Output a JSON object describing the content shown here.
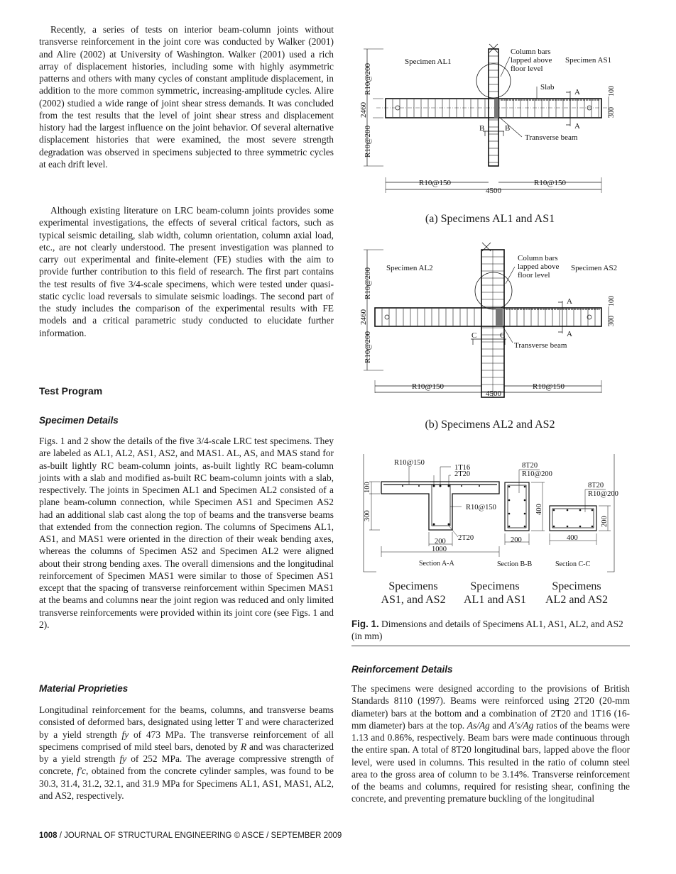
{
  "left": {
    "intro_p1": "Recently, a series of tests on interior beam-column joints without transverse reinforcement in the joint core was conducted by Walker (2001) and Alire (2002) at University of Washington. Walker (2001) used a rich array of displacement histories, including some with highly asymmetric patterns and others with many cycles of constant amplitude displacement, in addition to the more common symmetric, increasing-amplitude cycles. Alire (2002) studied a wide range of joint shear stress demands. It was concluded from the test results that the level of joint shear stress and displacement history had the largest influence on the joint behavior. Of several alternative displacement histories that were examined, the most severe strength degradation was observed in specimens subjected to three symmetric cycles at each drift level.",
    "intro_p2": "Although existing literature on LRC beam-column joints provides some experimental investigations, the effects of several critical factors, such as typical seismic detailing, slab width, column orientation, column axial load, etc., are not clearly understood. The present investigation was planned to carry out experimental and finite-element (FE) studies with the aim to provide further contribution to this field of research. The first part contains the test results of five 3/4-scale specimens, which were tested under quasi-static cyclic load reversals to simulate seismic loadings. The second part of the study includes the comparison of the experimental results with FE models and a critical parametric study conducted to elucidate further information.",
    "section_heading": "Test Program",
    "specimen_heading": "Specimen Details",
    "specimen_p": "Figs. 1 and 2 show the details of the five 3/4-scale LRC test specimens. They are labeled as AL1, AL2, AS1, AS2, and MAS1. AL, AS, and MAS stand for as-built lightly RC beam-column joints, as-built lightly RC beam-column joints with a slab and modified as-built RC beam-column joints with a slab, respectively. The joints in Specimen AL1 and Specimen AL2 consisted of a plane beam-column connection, while Specimen AS1 and Specimen AS2 had an additional slab cast along the top of beams and the transverse beams that extended from the connection region. The columns of Specimens AL1, AS1, and MAS1 were oriented in the direction of their weak bending axes, whereas the columns of Specimen AS2 and Specimen AL2 were aligned about their strong bending axes. The overall dimensions and the longitudinal reinforcement of Specimen MAS1 were similar to those of Specimen AS1 except that the spacing of transverse reinforcement within Specimen MAS1 at the beams and columns near the joint region was reduced and only limited transverse reinforcements were provided within its joint core (see Figs. 1 and 2).",
    "material_heading": "Material Proprieties",
    "material_p": {
      "s1": "Longitudinal reinforcement for the beams, columns, and transverse beams consisted of deformed bars, designated using letter T and were characterized by a yield strength ",
      "fy1": "fy",
      "s2": " of 473 MPa. The transverse reinforcement of all specimens comprised of mild steel bars, denoted by ",
      "R": "R",
      "s3": " and was characterized by a yield strength ",
      "fy2": "fy",
      "s4": " of 252 MPa. The average compressive strength of concrete, ",
      "fc": "f′c",
      "s5": ", obtained from the concrete cylinder samples, was found to be 30.3, 31.4, 31.2, 32.1, and 31.9 MPa for Specimens AL1, AS1, MAS1, AL2, and AS2, respectively."
    }
  },
  "figure": {
    "a": {
      "left_label": "Specimen AL1",
      "right_label": "Specimen AS1",
      "note": [
        "Column bars",
        "lapped above",
        "floor level"
      ],
      "slab": "Slab",
      "section_a": "A",
      "section_b": "B",
      "transverse": "Transverse beam",
      "v_top": "R10@200",
      "v_bot": "R10@200",
      "v_total": "2460",
      "h_left": "R10@150",
      "h_right": "R10@150",
      "h_total": "4500",
      "d100": "100",
      "d300": "300",
      "caption": "(a) Specimens AL1 and AS1"
    },
    "b": {
      "left_label": "Specimen AL2",
      "right_label": "Specimen AS2",
      "note": [
        "Column bars",
        "lapped above",
        "floor level"
      ],
      "section_a": "A",
      "section_c": "C",
      "transverse": "Transverse beam",
      "v_top": "R10@200",
      "v_bot": "R10@200",
      "v_total": "2460",
      "h_left": "R10@150",
      "h_right": "R10@150",
      "h_total": "4500",
      "d100": "100",
      "d300": "300",
      "caption": "(b) Specimens AL2 and AS2"
    },
    "sections": {
      "aa": {
        "r_top": "R10@150",
        "t16": "1T16",
        "t20_top": "2T20",
        "r_web": "R10@150",
        "t20_bot": "2T20",
        "d100": "100",
        "d300": "300",
        "d200": "200",
        "d1000": "1000",
        "title": "Section A-A"
      },
      "bb": {
        "bars": "8T20",
        "ties": "R10@200",
        "d400": "400",
        "d200": "200",
        "title": "Section B-B"
      },
      "cc": {
        "bars": "8T20",
        "ties": "R10@200",
        "d200": "200",
        "d400": "400",
        "title": "Section C-C"
      },
      "labels": [
        [
          "Specimens",
          "AS1, and AS2"
        ],
        [
          "Specimens",
          "AL1 and AS1"
        ],
        [
          "Specimens",
          "AL2 and AS2"
        ]
      ]
    },
    "caption_label": "Fig. 1.",
    "caption_text": " Dimensions and details of Specimens AL1, AS1, AL2, and AS2 (in mm)"
  },
  "right": {
    "reinf_heading": "Reinforcement Details",
    "reinf_p": {
      "s1": "The specimens were designed according to the provisions of British Standards 8110 (1997). Beams were reinforced using 2T20 (20-mm diameter) bars at the bottom and a combination of 2T20 and 1T16 (16-mm diameter) bars at the top. ",
      "m1": "As/Ag",
      "s2": " and ",
      "m2": "A′s/Ag",
      "s3": " ratios of the beams were 1.13 and 0.86%, respectively. Beam bars were made continuous through the entire span. A total of 8T20 longitudinal bars, lapped above the floor level, were used in columns. This resulted in the ratio of column steel area to the gross area of column to be 3.14%. Transverse reinforcement of the beams and columns, required for resisting shear, confining the concrete, and preventing premature buckling of the longitudinal"
    }
  },
  "footer": {
    "page": "1008",
    "text": " / JOURNAL OF STRUCTURAL ENGINEERING © ASCE / SEPTEMBER 2009"
  }
}
